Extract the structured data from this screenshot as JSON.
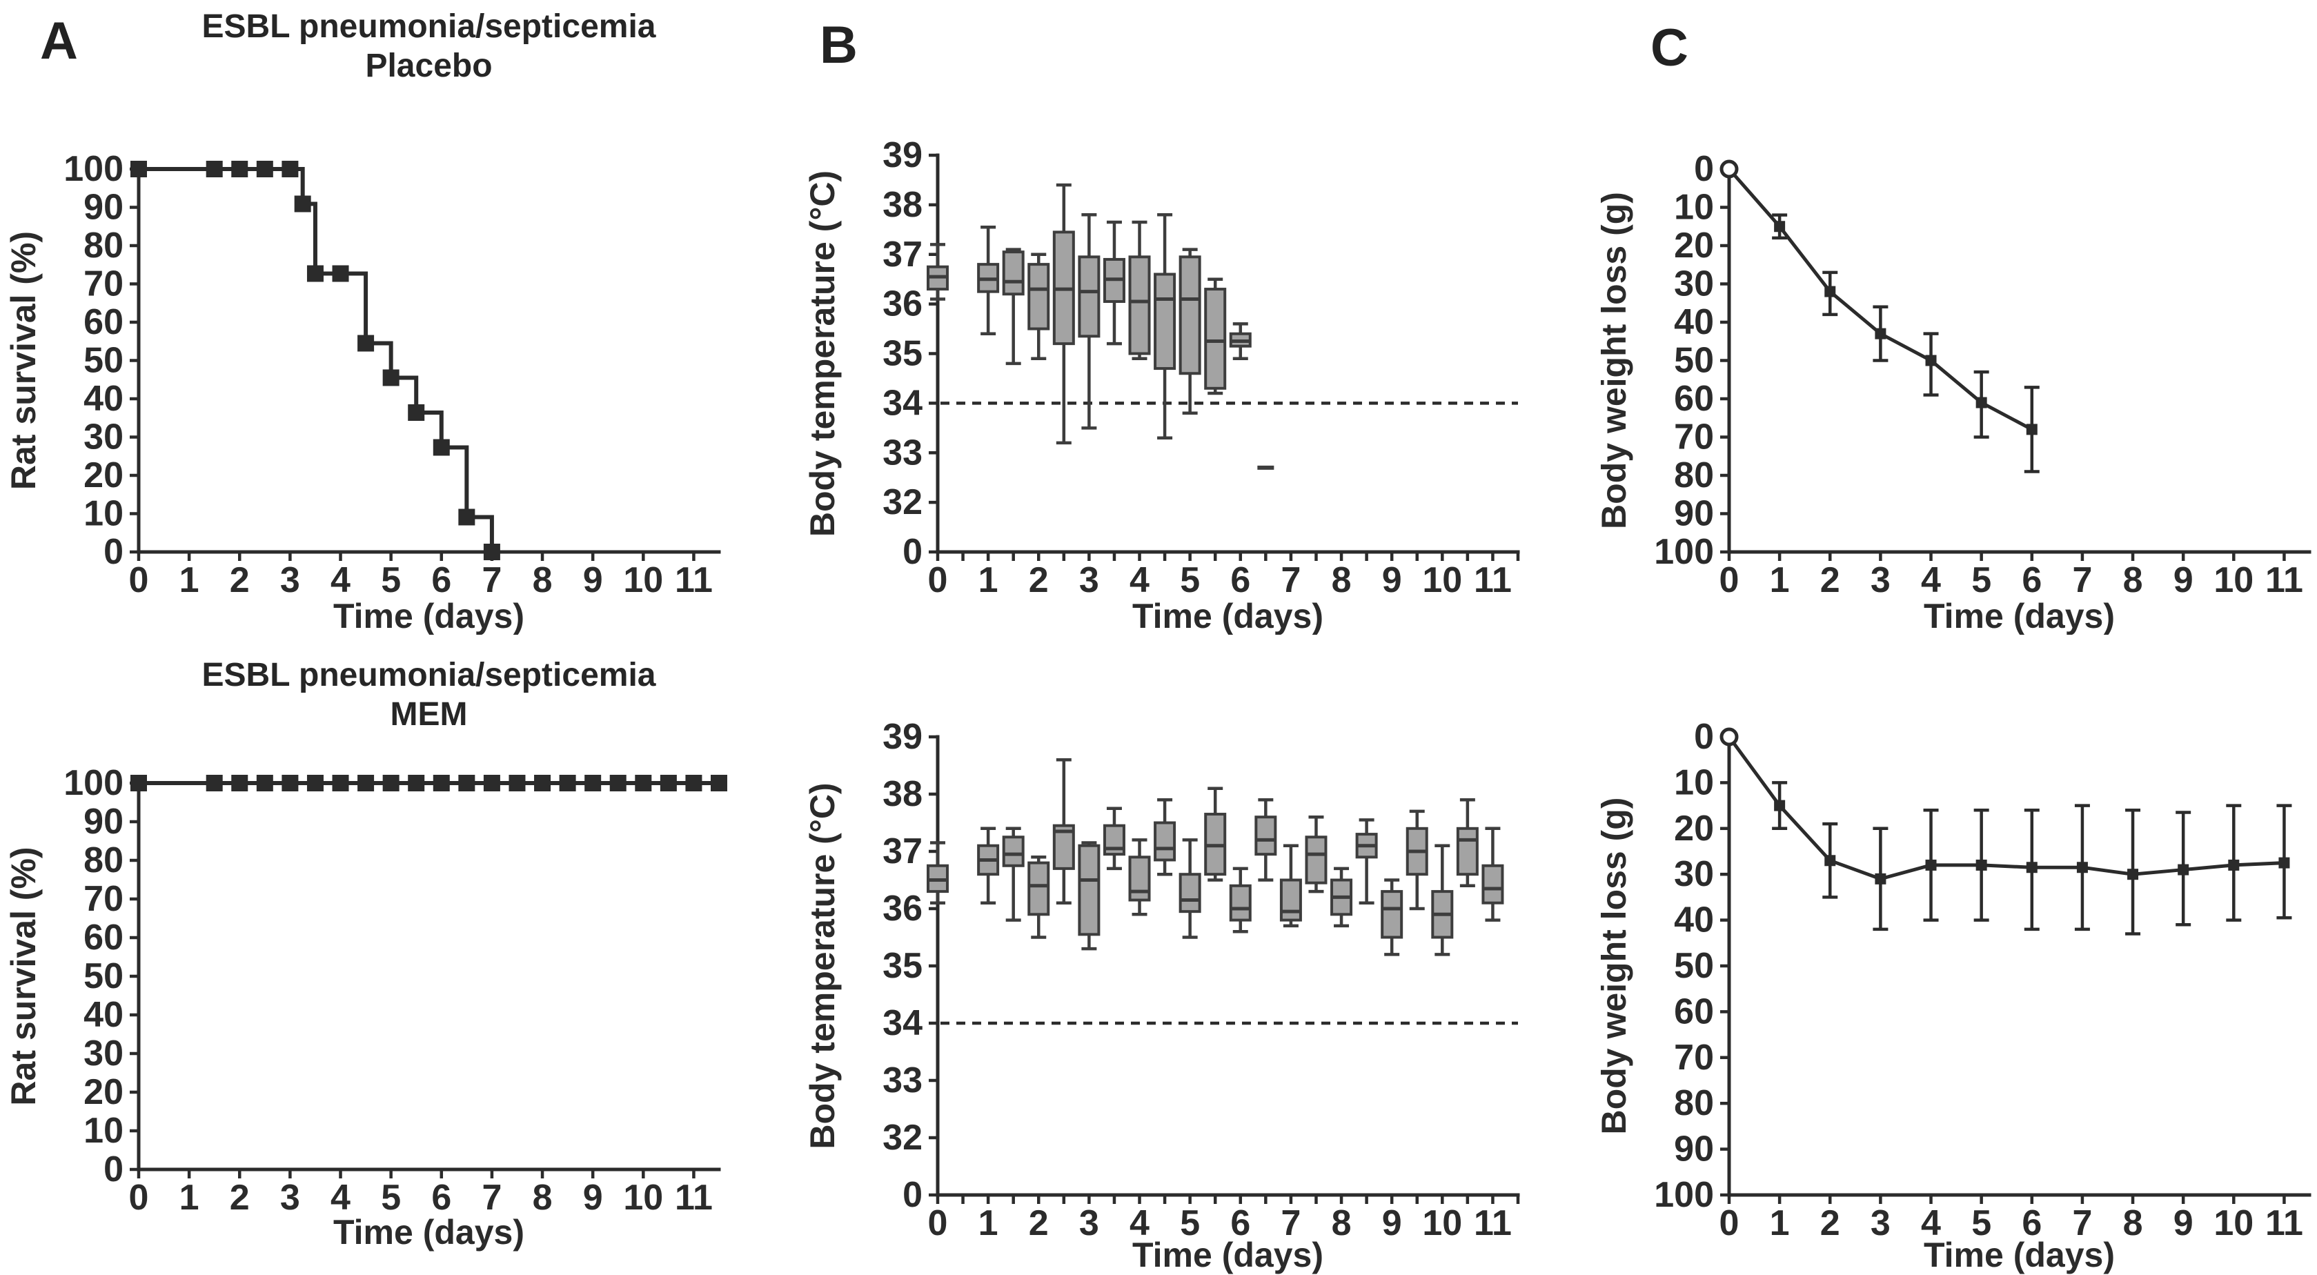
{
  "figure": {
    "panel_labels": [
      "A",
      "B",
      "C"
    ],
    "background": "#ffffff",
    "ink_color": "#2b2b2b",
    "box_fill": "#a3a3a3",
    "box_stroke": "#3d3d3d"
  },
  "chart_data": [
    {
      "name": "rat-survival-placebo",
      "kind": "km",
      "type": "line",
      "title": [
        "ESBL pneumonia/septicemia",
        "Placebo"
      ],
      "xlabel": "Time (days)",
      "ylabel": "Rat survival (%)",
      "xlim": [
        0,
        11.5
      ],
      "ylim": [
        0,
        100
      ],
      "x_ticks": [
        0,
        1,
        2,
        3,
        4,
        5,
        6,
        7,
        8,
        9,
        10,
        11
      ],
      "y_ticks": [
        100,
        90,
        80,
        70,
        60,
        50,
        40,
        30,
        20,
        10,
        0
      ],
      "steps": [
        [
          0,
          100
        ],
        [
          3.25,
          100
        ],
        [
          3.25,
          90.9
        ],
        [
          3.5,
          90.9
        ],
        [
          3.5,
          72.7
        ],
        [
          4.5,
          72.7
        ],
        [
          4.5,
          54.5
        ],
        [
          5,
          54.5
        ],
        [
          5,
          45.5
        ],
        [
          5.5,
          45.5
        ],
        [
          5.5,
          36.4
        ],
        [
          6,
          36.4
        ],
        [
          6,
          27.3
        ],
        [
          6.5,
          27.3
        ],
        [
          6.5,
          9.1
        ],
        [
          7,
          9.1
        ],
        [
          7,
          0
        ]
      ],
      "markers": [
        [
          0,
          100
        ],
        [
          1.5,
          100
        ],
        [
          2,
          100
        ],
        [
          2.5,
          100
        ],
        [
          3,
          100
        ],
        [
          3.25,
          90.9
        ],
        [
          3.5,
          72.7
        ],
        [
          4,
          72.7
        ],
        [
          4.5,
          54.5
        ],
        [
          5,
          45.5
        ],
        [
          5.5,
          36.4
        ],
        [
          6,
          27.3
        ],
        [
          6.5,
          9.1
        ],
        [
          7,
          0
        ]
      ]
    },
    {
      "name": "body-temperature-placebo",
      "kind": "box",
      "type": "boxplot",
      "xlabel": "Time (days)",
      "ylabel": "Body temperature (°C)",
      "xlim": [
        0,
        11.5
      ],
      "x_minor": true,
      "x_ticks": [
        0,
        1,
        2,
        3,
        4,
        5,
        6,
        7,
        8,
        9,
        10,
        11
      ],
      "y_ticks": [
        39,
        38,
        37,
        36,
        35,
        34,
        33,
        32,
        0
      ],
      "ref_line": 34,
      "boxes": [
        [
          0,
          36.1,
          36.3,
          36.55,
          36.75,
          37.2
        ],
        [
          1,
          35.4,
          36.25,
          36.5,
          36.8,
          37.55
        ],
        [
          1.5,
          34.8,
          36.2,
          36.45,
          37.05,
          37.1
        ],
        [
          2,
          34.9,
          35.5,
          36.3,
          36.8,
          37.0
        ],
        [
          2.5,
          33.2,
          35.2,
          36.3,
          37.45,
          38.4
        ],
        [
          3,
          33.5,
          35.35,
          36.25,
          36.95,
          37.8
        ],
        [
          3.5,
          35.2,
          36.05,
          36.5,
          36.9,
          37.65
        ],
        [
          4,
          34.9,
          35.0,
          36.05,
          36.95,
          37.65
        ],
        [
          4.5,
          33.3,
          34.7,
          36.1,
          36.6,
          37.8
        ],
        [
          5,
          33.8,
          34.6,
          36.1,
          36.95,
          37.1
        ],
        [
          5.5,
          34.2,
          34.3,
          35.25,
          36.3,
          36.5
        ],
        [
          6,
          34.9,
          35.15,
          35.25,
          35.4,
          35.6
        ]
      ],
      "lone_marks": [
        [
          6.5,
          32.7
        ]
      ]
    },
    {
      "name": "body-weight-loss-placebo",
      "kind": "errline",
      "type": "line",
      "xlabel": "Time (days)",
      "ylabel": "Body weight loss (g)",
      "xlim": [
        0,
        11.5
      ],
      "ylim": [
        0,
        100
      ],
      "y_down": true,
      "x_ticks": [
        0,
        1,
        2,
        3,
        4,
        5,
        6,
        7,
        8,
        9,
        10,
        11
      ],
      "y_ticks": [
        0,
        10,
        20,
        30,
        40,
        50,
        60,
        70,
        80,
        90,
        100
      ],
      "points": [
        {
          "x": 0,
          "y": 0,
          "open": true
        },
        {
          "x": 1,
          "y": 15,
          "lo": 12,
          "hi": 18
        },
        {
          "x": 2,
          "y": 32,
          "lo": 27,
          "hi": 38
        },
        {
          "x": 3,
          "y": 43,
          "lo": 36,
          "hi": 50
        },
        {
          "x": 4,
          "y": 50,
          "lo": 43,
          "hi": 59
        },
        {
          "x": 5,
          "y": 61,
          "lo": 53,
          "hi": 70
        },
        {
          "x": 6,
          "y": 68,
          "lo": 57,
          "hi": 79
        }
      ]
    },
    {
      "name": "rat-survival-mem",
      "kind": "km",
      "type": "line",
      "title": [
        "ESBL pneumonia/septicemia",
        "MEM"
      ],
      "xlabel": "Time (days)",
      "ylabel": "Rat survival (%)",
      "xlim": [
        0,
        11.5
      ],
      "ylim": [
        0,
        100
      ],
      "x_ticks": [
        0,
        1,
        2,
        3,
        4,
        5,
        6,
        7,
        8,
        9,
        10,
        11
      ],
      "y_ticks": [
        100,
        90,
        80,
        70,
        60,
        50,
        40,
        30,
        20,
        10,
        0
      ],
      "steps": [
        [
          0,
          100
        ],
        [
          11.5,
          100
        ]
      ],
      "markers": [
        [
          0,
          100
        ],
        [
          1.5,
          100
        ],
        [
          2,
          100
        ],
        [
          2.5,
          100
        ],
        [
          3,
          100
        ],
        [
          3.5,
          100
        ],
        [
          4,
          100
        ],
        [
          4.5,
          100
        ],
        [
          5,
          100
        ],
        [
          5.5,
          100
        ],
        [
          6,
          100
        ],
        [
          6.5,
          100
        ],
        [
          7,
          100
        ],
        [
          7.5,
          100
        ],
        [
          8,
          100
        ],
        [
          8.5,
          100
        ],
        [
          9,
          100
        ],
        [
          9.5,
          100
        ],
        [
          10,
          100
        ],
        [
          10.5,
          100
        ],
        [
          11,
          100
        ],
        [
          11.5,
          100
        ]
      ]
    },
    {
      "name": "body-temperature-mem",
      "kind": "box",
      "type": "boxplot",
      "xlabel": "Time (days)",
      "ylabel": "Body temperature (°C)",
      "xlim": [
        0,
        11.5
      ],
      "x_minor": true,
      "x_ticks": [
        0,
        1,
        2,
        3,
        4,
        5,
        6,
        7,
        8,
        9,
        10,
        11
      ],
      "y_ticks": [
        39,
        38,
        37,
        36,
        35,
        34,
        33,
        32,
        0
      ],
      "ref_line": 34,
      "boxes": [
        [
          0,
          36.1,
          36.3,
          36.5,
          36.75,
          37.15
        ],
        [
          1,
          36.1,
          36.6,
          36.85,
          37.1,
          37.4
        ],
        [
          1.5,
          35.8,
          36.75,
          36.95,
          37.25,
          37.4
        ],
        [
          2,
          35.5,
          35.9,
          36.4,
          36.8,
          36.9
        ],
        [
          2.5,
          36.1,
          36.7,
          37.35,
          37.45,
          38.6
        ],
        [
          3,
          35.3,
          35.55,
          36.5,
          37.1,
          37.15
        ],
        [
          3.5,
          36.7,
          36.95,
          37.05,
          37.45,
          37.75
        ],
        [
          4,
          35.9,
          36.15,
          36.3,
          36.9,
          37.2
        ],
        [
          4.5,
          36.6,
          36.85,
          37.05,
          37.5,
          37.9
        ],
        [
          5,
          35.5,
          35.95,
          36.15,
          36.6,
          37.2
        ],
        [
          5.5,
          36.5,
          36.6,
          37.1,
          37.65,
          38.1
        ],
        [
          6,
          35.6,
          35.8,
          36.0,
          36.4,
          36.7
        ],
        [
          6.5,
          36.5,
          36.95,
          37.2,
          37.6,
          37.9
        ],
        [
          7,
          35.7,
          35.8,
          35.95,
          36.5,
          37.1
        ],
        [
          7.5,
          36.3,
          36.45,
          36.95,
          37.25,
          37.6
        ],
        [
          8,
          35.7,
          35.9,
          36.2,
          36.5,
          36.7
        ],
        [
          8.5,
          36.1,
          36.9,
          37.1,
          37.3,
          37.55
        ],
        [
          9,
          35.2,
          35.5,
          36.0,
          36.3,
          36.5
        ],
        [
          9.5,
          36.0,
          36.6,
          37.0,
          37.4,
          37.7
        ],
        [
          10,
          35.2,
          35.5,
          35.9,
          36.3,
          37.1
        ],
        [
          10.5,
          36.4,
          36.6,
          37.2,
          37.4,
          37.9
        ],
        [
          11,
          35.8,
          36.1,
          36.35,
          36.75,
          37.4
        ]
      ],
      "lone_marks": []
    },
    {
      "name": "body-weight-loss-mem",
      "kind": "errline",
      "type": "line",
      "xlabel": "Time (days)",
      "ylabel": "Body weight loss (g)",
      "xlim": [
        0,
        11.5
      ],
      "ylim": [
        0,
        100
      ],
      "y_down": true,
      "x_ticks": [
        0,
        1,
        2,
        3,
        4,
        5,
        6,
        7,
        8,
        9,
        10,
        11
      ],
      "y_ticks": [
        0,
        10,
        20,
        30,
        40,
        50,
        60,
        70,
        80,
        90,
        100
      ],
      "points": [
        {
          "x": 0,
          "y": 0,
          "open": true
        },
        {
          "x": 1,
          "y": 15,
          "lo": 10,
          "hi": 20
        },
        {
          "x": 2,
          "y": 27,
          "lo": 19,
          "hi": 35
        },
        {
          "x": 3,
          "y": 31,
          "lo": 20,
          "hi": 42
        },
        {
          "x": 4,
          "y": 28,
          "lo": 16,
          "hi": 40
        },
        {
          "x": 5,
          "y": 28,
          "lo": 16,
          "hi": 40
        },
        {
          "x": 6,
          "y": 28.5,
          "lo": 16,
          "hi": 42
        },
        {
          "x": 7,
          "y": 28.5,
          "lo": 15,
          "hi": 42
        },
        {
          "x": 8,
          "y": 30,
          "lo": 16,
          "hi": 43
        },
        {
          "x": 9,
          "y": 29,
          "lo": 16.5,
          "hi": 41
        },
        {
          "x": 10,
          "y": 28,
          "lo": 15,
          "hi": 40
        },
        {
          "x": 11,
          "y": 27.5,
          "lo": 15,
          "hi": 39.5
        }
      ]
    }
  ]
}
